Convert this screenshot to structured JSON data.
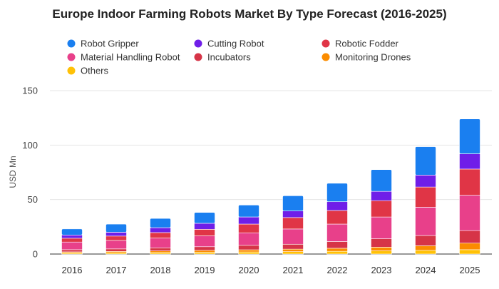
{
  "chart_data": {
    "type": "bar",
    "stacked": true,
    "title": "Europe Indoor Farming Robots Market By Type Forecast (2016-2025)",
    "xlabel": "",
    "ylabel": "USD Mn",
    "ylim": [
      0,
      150
    ],
    "yticks": [
      0,
      50,
      100,
      150
    ],
    "grid": true,
    "legend_position": "top",
    "categories": [
      "2016",
      "2017",
      "2018",
      "2019",
      "2020",
      "2021",
      "2022",
      "2023",
      "2024",
      "2025"
    ],
    "series": [
      {
        "name": "Others",
        "color": "#ffc107",
        "values": [
          1.0,
          1.2,
          1.4,
          1.6,
          1.9,
          2.2,
          2.5,
          2.9,
          3.4,
          4.0
        ]
      },
      {
        "name": "Monitoring Drones",
        "color": "#fb8c00",
        "values": [
          1.0,
          1.2,
          1.5,
          1.8,
          2.0,
          2.3,
          2.8,
          3.4,
          4.2,
          6.0
        ]
      },
      {
        "name": "Incubators",
        "color": "#d63447",
        "values": [
          2.0,
          2.3,
          2.8,
          3.3,
          4.1,
          4.5,
          6.2,
          7.7,
          9.4,
          11.5
        ]
      },
      {
        "name": "Material Handling Robot",
        "color": "#e8408a",
        "values": [
          7.0,
          7.8,
          9.0,
          10.0,
          11.5,
          14.0,
          16.0,
          20.0,
          26.0,
          32.5
        ]
      },
      {
        "name": "Robotic Fodder",
        "color": "#e03546",
        "values": [
          3.5,
          4.0,
          5.0,
          6.0,
          8.0,
          10.5,
          12.5,
          15.0,
          18.5,
          24.0
        ]
      },
      {
        "name": "Cutting Robot",
        "color": "#6f1ee8",
        "values": [
          3.0,
          3.5,
          4.5,
          5.5,
          6.5,
          6.0,
          8.0,
          8.5,
          11.0,
          14.0
        ]
      },
      {
        "name": "Robot Gripper",
        "color": "#1a7ff0",
        "values": [
          5.5,
          7.5,
          8.5,
          10.0,
          11.0,
          14.0,
          17.0,
          20.0,
          26.0,
          32.0
        ]
      }
    ],
    "legend": [
      {
        "name": "Robot Gripper",
        "color": "#1a7ff0"
      },
      {
        "name": "Cutting Robot",
        "color": "#6f1ee8"
      },
      {
        "name": "Robotic Fodder",
        "color": "#e03546"
      },
      {
        "name": "Material Handling Robot",
        "color": "#e8408a"
      },
      {
        "name": "Incubators",
        "color": "#d63447"
      },
      {
        "name": "Monitoring Drones",
        "color": "#fb8c00"
      },
      {
        "name": "Others",
        "color": "#ffc107"
      }
    ]
  }
}
